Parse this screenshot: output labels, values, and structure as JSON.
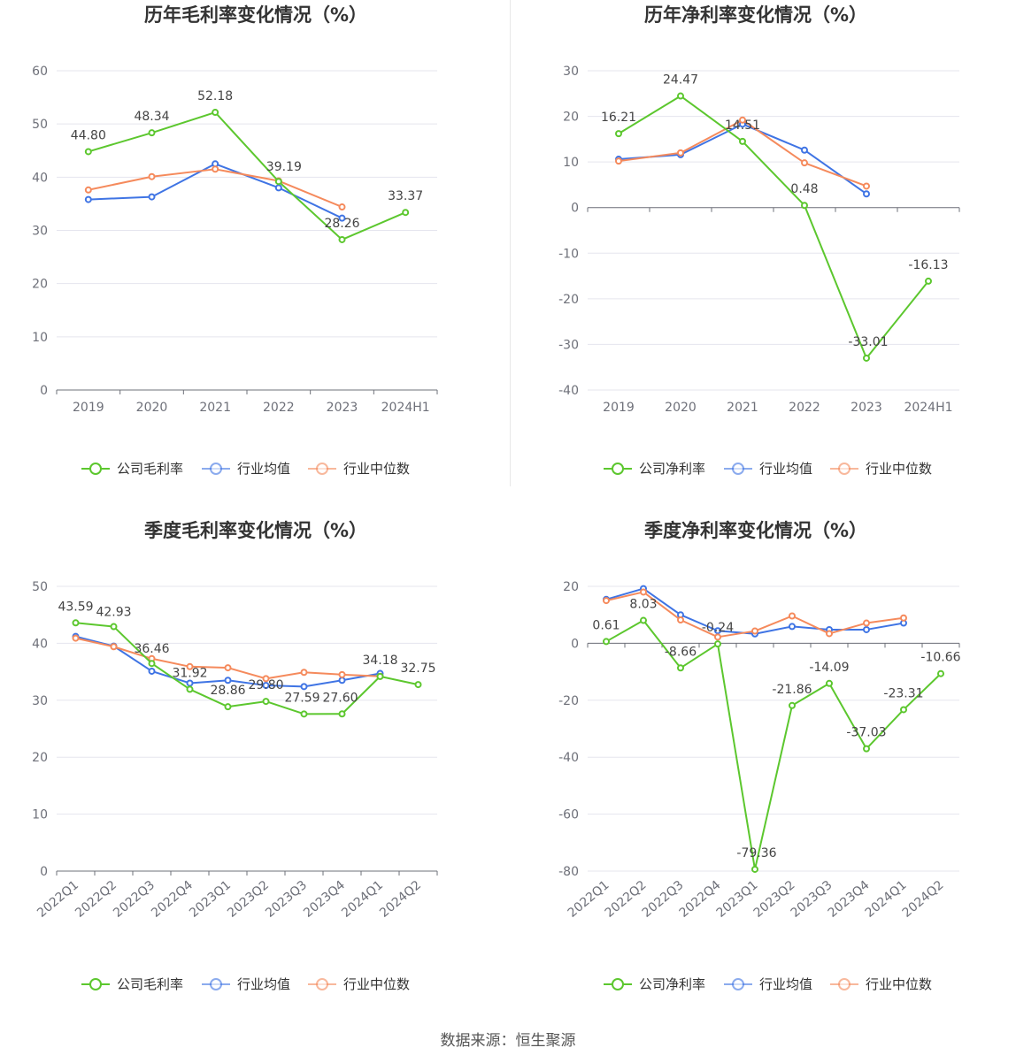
{
  "source": "数据来源：恒生聚源",
  "colors": {
    "company": "#5cc72e",
    "avg": "#3f74e4",
    "median": "#f58a5c",
    "grid": "#e5e5ee",
    "axis": "#6e7079"
  },
  "chart_data": [
    {
      "type": "line",
      "title": "历年毛利率变化情况（%）",
      "categories": [
        "2019",
        "2020",
        "2021",
        "2022",
        "2023",
        "2024H1"
      ],
      "ylim": [
        0,
        60
      ],
      "yticks": [
        0,
        10,
        20,
        30,
        40,
        50,
        60
      ],
      "rotate_x": false,
      "legend_position": "bottom",
      "series": [
        {
          "name": "公司毛利率",
          "color": "#5cc72e",
          "values": [
            44.8,
            48.34,
            52.18,
            39.19,
            28.26,
            33.37
          ],
          "labels": [
            "44.80",
            "48.34",
            "52.18",
            "39.19",
            "28.26",
            "33.37"
          ]
        },
        {
          "name": "行业均值",
          "color": "#3f74e4",
          "values": [
            35.8,
            36.3,
            42.5,
            38.0,
            32.3,
            null
          ]
        },
        {
          "name": "行业中位数",
          "color": "#f58a5c",
          "values": [
            37.6,
            40.1,
            41.5,
            39.3,
            34.4,
            null
          ]
        }
      ]
    },
    {
      "type": "line",
      "title": "历年净利率变化情况（%）",
      "categories": [
        "2019",
        "2020",
        "2021",
        "2022",
        "2023",
        "2024H1"
      ],
      "ylim": [
        -40,
        30
      ],
      "yticks": [
        -40,
        -30,
        -20,
        -10,
        0,
        10,
        20,
        30
      ],
      "rotate_x": false,
      "legend_position": "bottom",
      "series": [
        {
          "name": "公司净利率",
          "color": "#5cc72e",
          "values": [
            16.21,
            24.47,
            14.51,
            0.48,
            -33.01,
            -16.13
          ],
          "labels": [
            "16.21",
            "24.47",
            "14.51",
            "0.48",
            "-33.01",
            "-16.13"
          ]
        },
        {
          "name": "行业均值",
          "color": "#3f74e4",
          "values": [
            10.6,
            11.6,
            18.3,
            12.6,
            3.0,
            null
          ]
        },
        {
          "name": "行业中位数",
          "color": "#f58a5c",
          "values": [
            10.2,
            12.0,
            19.2,
            9.8,
            4.7,
            null
          ]
        }
      ]
    },
    {
      "type": "line",
      "title": "季度毛利率变化情况（%）",
      "categories": [
        "2022Q1",
        "2022Q2",
        "2022Q3",
        "2022Q4",
        "2023Q1",
        "2023Q2",
        "2023Q3",
        "2023Q4",
        "2024Q1",
        "2024Q2"
      ],
      "ylim": [
        0,
        50
      ],
      "yticks": [
        0,
        10,
        20,
        30,
        40,
        50
      ],
      "rotate_x": true,
      "legend_position": "bottom",
      "series": [
        {
          "name": "公司毛利率",
          "color": "#5cc72e",
          "values": [
            43.59,
            42.93,
            36.46,
            31.92,
            28.86,
            29.8,
            27.59,
            27.6,
            34.18,
            32.75
          ],
          "labels": [
            "43.59",
            "42.93",
            "36.46",
            "31.92",
            "28.86",
            "29.80",
            "27.59",
            "27.60",
            "34.18",
            "32.75"
          ]
        },
        {
          "name": "行业均值",
          "color": "#3f74e4",
          "values": [
            41.2,
            39.5,
            35.1,
            33.0,
            33.5,
            32.6,
            32.4,
            33.5,
            34.7,
            null
          ]
        },
        {
          "name": "行业中位数",
          "color": "#f58a5c",
          "values": [
            40.9,
            39.4,
            37.3,
            35.9,
            35.7,
            33.8,
            34.9,
            34.5,
            34.2,
            null
          ]
        }
      ]
    },
    {
      "type": "line",
      "title": "季度净利率变化情况（%）",
      "categories": [
        "2022Q1",
        "2022Q2",
        "2022Q3",
        "2022Q4",
        "2023Q1",
        "2023Q2",
        "2023Q3",
        "2023Q4",
        "2024Q1",
        "2024Q2"
      ],
      "ylim": [
        -80,
        20
      ],
      "yticks": [
        -80,
        -60,
        -40,
        -20,
        0,
        20
      ],
      "rotate_x": true,
      "legend_position": "bottom",
      "series": [
        {
          "name": "公司净利率",
          "color": "#5cc72e",
          "values": [
            0.61,
            8.03,
            -8.66,
            -0.24,
            -79.36,
            -21.86,
            -14.09,
            -37.03,
            -23.31,
            -10.66
          ],
          "labels": [
            "0.61",
            "8.03",
            "-8.66",
            "-0.24",
            "-79.36",
            "-21.86",
            "-14.09",
            "-37.03",
            "-23.31",
            "-10.66"
          ]
        },
        {
          "name": "行业均值",
          "color": "#3f74e4",
          "values": [
            15.4,
            19.2,
            10.0,
            4.4,
            3.3,
            5.9,
            4.8,
            4.8,
            7.1,
            null
          ]
        },
        {
          "name": "行业中位数",
          "color": "#f58a5c",
          "values": [
            15.0,
            18.0,
            8.2,
            2.2,
            4.3,
            9.6,
            3.4,
            7.1,
            8.9,
            null
          ]
        }
      ]
    }
  ]
}
